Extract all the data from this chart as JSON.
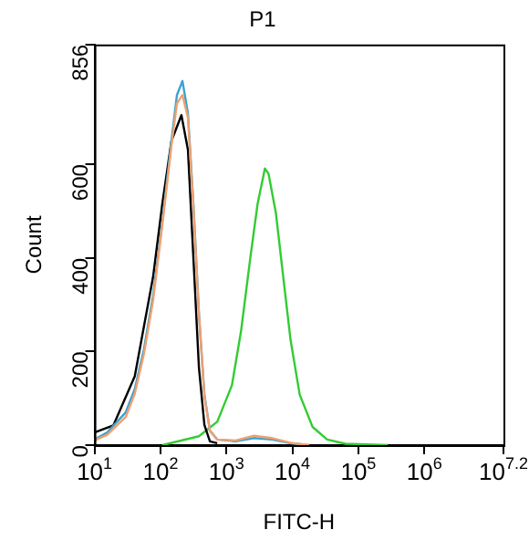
{
  "chart_data": {
    "type": "line",
    "title": "P1",
    "xlabel": "FITC-H",
    "ylabel": "Count",
    "log": "x",
    "grid": false,
    "marker": "none",
    "legend": false,
    "xlim": [
      10,
      15848932
    ],
    "xticks": [
      {
        "value": 10,
        "label": "10$^{1}$"
      },
      {
        "value": 100,
        "label": "10$^{2}$"
      },
      {
        "value": 1000,
        "label": "10$^{3}$"
      },
      {
        "value": 10000,
        "label": "10$^{4}$"
      },
      {
        "value": 100000,
        "label": "10$^{5}$"
      },
      {
        "value": 1000000,
        "label": "10$^{6}$"
      },
      {
        "value": 15848932,
        "label": "10$^{7.2}$"
      }
    ],
    "ylim": [
      0,
      856
    ],
    "yticks": [
      0,
      200,
      400,
      600,
      856
    ],
    "series": [
      {
        "color": "#f0a070",
        "x": [
          10,
          15.6,
          29.7,
          40.8,
          56.2,
          77.4,
          106.6,
          146.8,
          177.8,
          215.4,
          261,
          316,
          383,
          464,
          562,
          726,
          1377,
          2610,
          4945,
          9380,
          17780
        ],
        "values": [
          10,
          22,
          60,
          110,
          195,
          310,
          470,
          640,
          730,
          748,
          700,
          510,
          280,
          105,
          30,
          12,
          10,
          20,
          15,
          5,
          0
        ]
      },
      {
        "color": "#3ba3d0",
        "x": [
          10,
          15.6,
          29.7,
          40.8,
          56.2,
          77.4,
          106.6,
          146.8,
          177.8,
          215.4,
          261,
          316,
          383,
          464,
          562,
          726,
          1377,
          2610,
          4945,
          9380,
          17780
        ],
        "values": [
          12,
          27,
          70,
          120,
          205,
          320,
          476,
          650,
          748,
          778,
          709,
          515,
          283,
          108,
          31,
          12,
          8,
          15,
          12,
          4,
          0
        ]
      },
      {
        "color": "#000000",
        "x": [
          10,
          19.3,
          40.8,
          77.4,
          106.6,
          146.8,
          208,
          261,
          316,
          383,
          464,
          562,
          726
        ],
        "values": [
          27,
          42,
          147,
          360,
          515,
          650,
          705,
          631,
          399,
          166,
          43,
          8,
          4
        ]
      },
      {
        "color": "#33cc33",
        "x": [
          107,
          383,
          726,
          1212,
          1668,
          2297,
          2967,
          3831,
          4350,
          5623,
          7262,
          9380,
          12915,
          20220,
          33700,
          63900,
          278000
        ],
        "values": [
          0,
          19,
          50,
          128,
          244,
          399,
          515,
          591,
          580,
          496,
          360,
          225,
          108,
          39,
          12,
          3,
          0
        ]
      }
    ]
  }
}
